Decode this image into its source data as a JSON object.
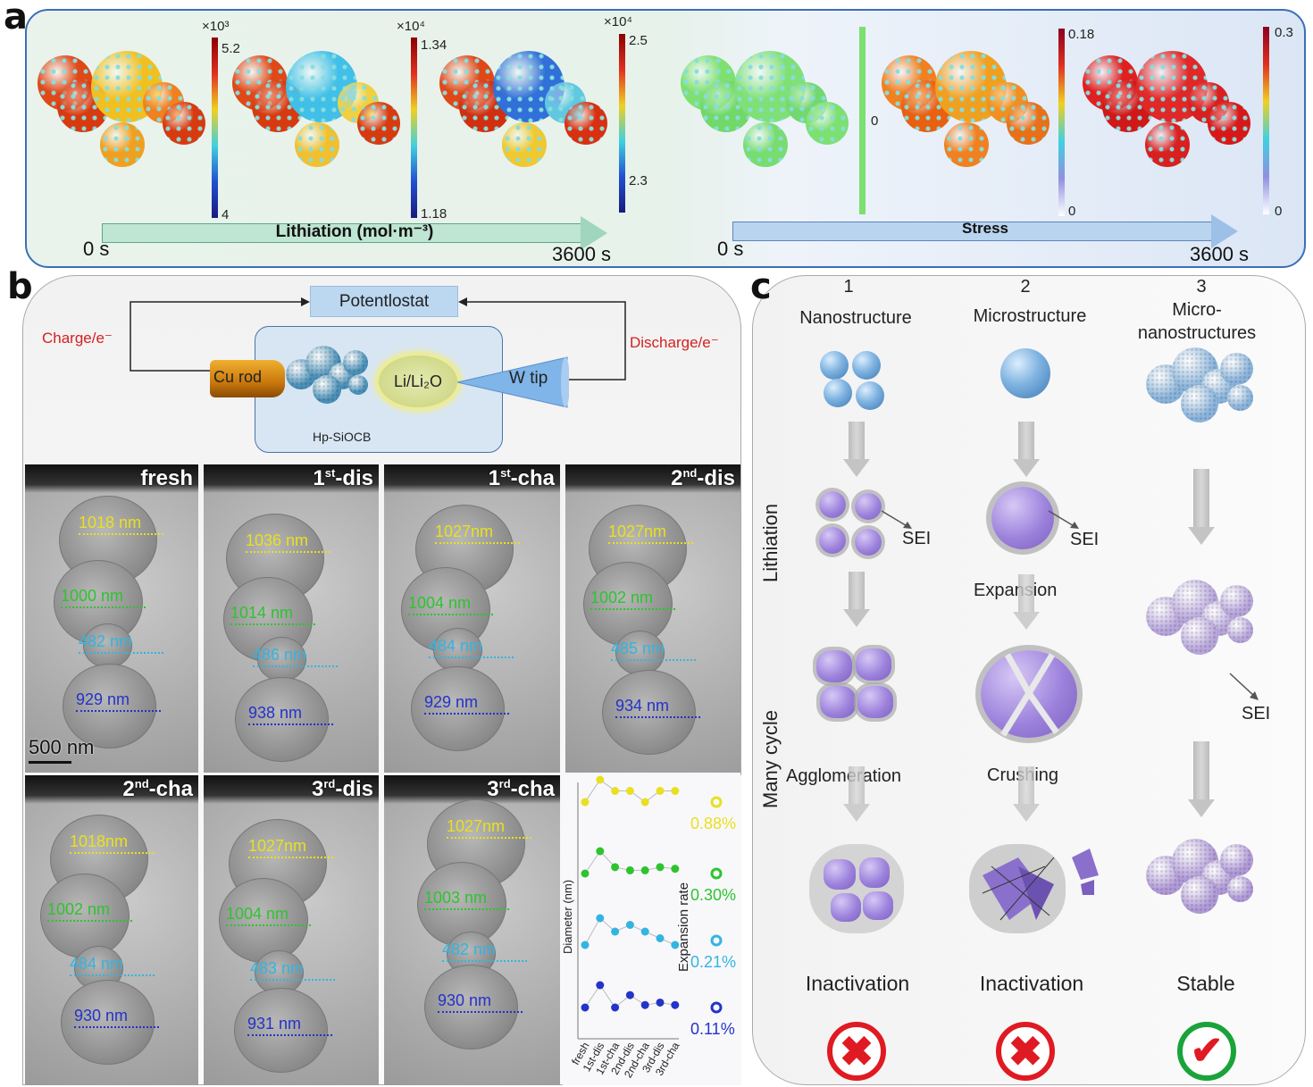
{
  "panel_labels": {
    "a": "a",
    "b": "b",
    "c": "c"
  },
  "panel_a": {
    "colorbars": [
      {
        "exponent": "×10³",
        "max": "5.2",
        "min": "4"
      },
      {
        "exponent": "×10⁴",
        "max": "1.34",
        "min": "1.18"
      },
      {
        "exponent": "×10⁴",
        "max": "2.5",
        "min": "2.3"
      },
      {
        "zero": "0"
      },
      {
        "max": "0.18",
        "min": "0"
      },
      {
        "max": "0.3",
        "min": "0"
      }
    ],
    "lithiation_arrow": "Lithiation (mol·m⁻³)",
    "stress_arrow": "Stress",
    "lithiation_start": "0 s",
    "lithiation_end": "3600 s",
    "stress_start": "0 s",
    "stress_end": "3600 s"
  },
  "panel_b": {
    "schematic": {
      "potentiostat": "Potentlostat",
      "charge": "Charge/e⁻",
      "discharge": "Discharge/e⁻",
      "cu_rod": "Cu rod",
      "sample": "Hp-SiOCB",
      "li_source": "Li/Li₂O",
      "w_tip": "W tip"
    },
    "tem_panels": [
      {
        "label": "fresh",
        "sup": "",
        "suffix": "",
        "measurements": [
          "1018 nm",
          "1000 nm",
          "482 nm",
          "929 nm"
        ]
      },
      {
        "label": "1",
        "sup": "st",
        "suffix": "-dis",
        "measurements": [
          "1036 nm",
          "1014 nm",
          "486 nm",
          "938 nm"
        ]
      },
      {
        "label": "1",
        "sup": "st",
        "suffix": "-cha",
        "measurements": [
          "1027nm",
          "1004 nm",
          "484 nm",
          "929 nm"
        ]
      },
      {
        "label": "2",
        "sup": "nd",
        "suffix": "-dis",
        "measurements": [
          "1027nm",
          "1002 nm",
          "485 nm",
          "934 nm"
        ]
      },
      {
        "label": "2",
        "sup": "nd",
        "suffix": "-cha",
        "measurements": [
          "1018nm",
          "1002 nm",
          "484 nm",
          "930 nm"
        ]
      },
      {
        "label": "3",
        "sup": "rd",
        "suffix": "-dis",
        "measurements": [
          "1027nm",
          "1004 nm",
          "483 nm",
          "931 nm"
        ]
      },
      {
        "label": "3",
        "sup": "rd",
        "suffix": "-cha",
        "measurements": [
          "1027nm",
          "1003 nm",
          "482 nm",
          "930 nm"
        ]
      }
    ],
    "scale_bar": "500 nm",
    "measurement_colors": [
      "#e8e020",
      "#2ec42e",
      "#34b4e0",
      "#2433c8"
    ]
  },
  "chart_data": {
    "type": "line",
    "categories": [
      "fresh",
      "1st-dis",
      "1st-cha",
      "2nd-dis",
      "2nd-cha",
      "3rd-dis",
      "3rd-cha"
    ],
    "ylabel": "Diameter (nm)",
    "right_label": "Expansion rate",
    "series": [
      {
        "values": [
          1018,
          1036,
          1027,
          1027,
          1018,
          1027,
          1027
        ],
        "expansion": "0.88%",
        "color": "#e8e020"
      },
      {
        "values": [
          1000,
          1014,
          1004,
          1002,
          1002,
          1004,
          1003
        ],
        "expansion": "0.30%",
        "color": "#2ec42e"
      },
      {
        "values": [
          482,
          486,
          484,
          485,
          484,
          483,
          482
        ],
        "expansion": "0.21%",
        "color": "#34b4e0"
      },
      {
        "values": [
          929,
          938,
          929,
          934,
          930,
          931,
          930
        ],
        "expansion": "0.11%",
        "color": "#2433c8"
      }
    ]
  },
  "panel_c": {
    "columns": [
      {
        "number": "1",
        "title": "Nanostructure",
        "outcome": "Inactivation",
        "status": "fail"
      },
      {
        "number": "2",
        "title": "Microstructure",
        "outcome": "Inactivation",
        "status": "fail"
      },
      {
        "number": "3",
        "title": "Micro-nanostructures",
        "title_line1": "Micro-",
        "title_line2": "nanostructures",
        "outcome": "Stable",
        "status": "pass"
      }
    ],
    "row_labels": {
      "lithiation": "Lithiation",
      "cycling": "Many cycle"
    },
    "sei": "SEI",
    "expansion": "Expansion",
    "agglomeration": "Agglomeration",
    "crushing": "Crushing",
    "fail_symbol": "✖",
    "pass_symbol": "✔"
  }
}
